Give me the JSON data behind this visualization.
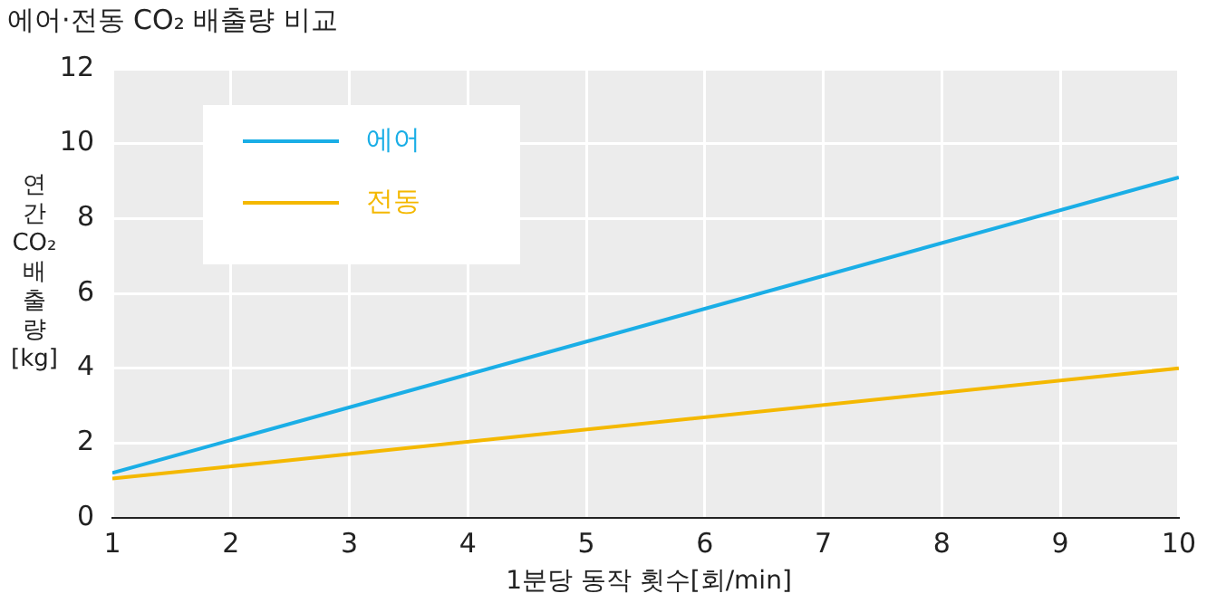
{
  "chart_data": {
    "type": "line",
    "title": "에어·전동 CO₂ 배출량 비교",
    "xlabel": "1분당 동작 횟수[회/min]",
    "ylabel": "연간 CO₂ 배출량 [kg]",
    "x": [
      1,
      10
    ],
    "xlim": [
      1,
      10
    ],
    "xticks": [
      1,
      2,
      3,
      4,
      5,
      6,
      7,
      8,
      9,
      10
    ],
    "ylim": [
      0,
      12
    ],
    "yticks": [
      0,
      2,
      4,
      6,
      8,
      10,
      12
    ],
    "grid": true,
    "legend": "top left",
    "marker": "none",
    "line_style": "solid",
    "series": [
      {
        "name": "에어",
        "color": "#1aaee6",
        "values": [
          1.2,
          9.1
        ]
      },
      {
        "name": "전동",
        "color": "#f4b800",
        "values": [
          1.05,
          4.0
        ]
      }
    ]
  }
}
